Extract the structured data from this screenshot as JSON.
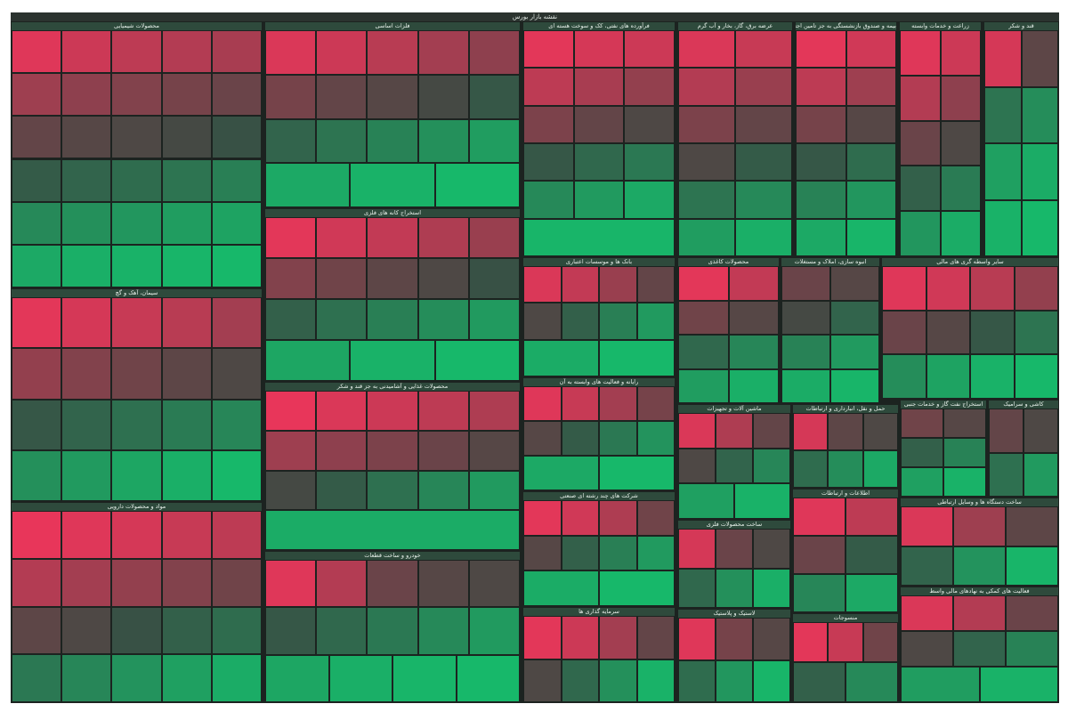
{
  "chart_data": {
    "type": "treemap",
    "title": "نقشه بازار بورس",
    "negative_color": "#e8365a",
    "neutral_color": "#3a4a42",
    "positive_color": "#17b86a",
    "color_range": 3,
    "sectors": [
      {
        "name": "محصولات شیمیایی",
        "values": [
          -2.8,
          -2.4,
          -2.1,
          -1.9,
          -1.7,
          -1.5,
          -1.2,
          -1.0,
          -0.8,
          -0.6,
          -0.5,
          -0.3,
          -0.2,
          -0.1,
          0.1,
          0.3,
          0.5,
          0.7,
          0.9,
          1.2,
          1.5,
          1.7,
          1.9,
          2.1,
          2.3,
          2.5,
          2.7,
          2.8,
          2.9,
          3.0
        ]
      },
      {
        "name": "سیمان، آهک و گچ",
        "values": [
          -2.9,
          -2.6,
          -2.3,
          -2.0,
          -1.6,
          -1.3,
          -1.0,
          -0.7,
          -0.4,
          -0.2,
          0.2,
          0.5,
          0.8,
          1.1,
          1.4,
          1.7,
          2.0,
          2.4,
          2.7,
          3.0
        ]
      },
      {
        "name": "مواد و محصولات دارویی",
        "values": [
          -3.0,
          -2.8,
          -2.6,
          -2.3,
          -2.1,
          -1.9,
          -1.6,
          -1.3,
          -1.0,
          -0.7,
          -0.4,
          -0.2,
          0.1,
          0.4,
          0.7,
          1.0,
          1.4,
          1.8,
          2.2,
          2.6
        ]
      },
      {
        "name": "فلزات اساسی",
        "values": [
          -2.7,
          -2.4,
          -2.0,
          -1.6,
          -1.2,
          -0.8,
          -0.5,
          -0.3,
          -0.1,
          0.2,
          0.5,
          0.9,
          1.3,
          1.7,
          2.1,
          2.5,
          2.8,
          3.0
        ]
      },
      {
        "name": "استخراج کانه های فلزی",
        "values": [
          -2.9,
          -2.5,
          -2.2,
          -1.8,
          -1.4,
          -1.0,
          -0.7,
          -0.4,
          -0.2,
          0.1,
          0.4,
          0.8,
          1.2,
          1.6,
          2.0,
          2.4,
          2.8,
          3.0
        ]
      },
      {
        "name": "محصولات غذایی و آشامیدنی به جز قند و شکر",
        "values": [
          -3.0,
          -2.7,
          -2.4,
          -2.1,
          -1.8,
          -1.5,
          -1.2,
          -0.9,
          -0.6,
          -0.3,
          -0.1,
          0.3,
          0.8,
          1.4,
          2.0,
          2.6
        ]
      },
      {
        "name": "خودرو و ساخت قطعات",
        "values": [
          -2.8,
          -1.9,
          -0.6,
          -0.3,
          -0.2,
          0.2,
          0.6,
          1.0,
          1.5,
          2.0,
          2.4,
          2.7,
          2.9,
          3.0
        ]
      },
      {
        "name": "فرآورده های نفتی، کک و سوخت هسته ای",
        "values": [
          -2.9,
          -2.6,
          -2.4,
          -2.1,
          -1.7,
          -1.3,
          -0.9,
          -0.5,
          -0.2,
          0.2,
          0.6,
          1.0,
          1.5,
          2.0,
          2.5,
          2.9
        ]
      },
      {
        "name": "عرضه برق، گاز، بخار و آب گرم",
        "values": [
          -2.7,
          -2.3,
          -1.9,
          -1.4,
          -0.9,
          -0.5,
          -0.2,
          0.3,
          0.9,
          1.5,
          2.1,
          2.7
        ]
      },
      {
        "name": "بیمه و صندوق بازنشستگی به جز تامین اجتماعی",
        "values": [
          -2.9,
          -2.5,
          -2.1,
          -1.5,
          -0.8,
          -0.3,
          0.2,
          0.7,
          1.3,
          1.9,
          2.5,
          2.9
        ]
      },
      {
        "name": "زراعت و خدمات وابسته",
        "values": [
          -2.8,
          -2.4,
          -1.9,
          -1.2,
          -0.6,
          -0.2,
          0.4,
          1.1,
          1.9,
          2.6
        ]
      },
      {
        "name": "قند و شکر",
        "values": [
          -2.6,
          -0.4,
          0.9,
          1.6,
          2.2,
          2.6,
          2.8,
          3.0
        ]
      },
      {
        "name": "بانک ها و موسسات اعتباری",
        "values": [
          -2.7,
          -2.2,
          -1.4,
          -0.5,
          -0.2,
          0.4,
          1.2,
          2.0,
          2.6,
          3.0
        ]
      },
      {
        "name": "محصولات کاغذی",
        "values": [
          -2.9,
          -2.2,
          -0.7,
          -0.3,
          0.6,
          1.4,
          2.1,
          2.7
        ]
      },
      {
        "name": "انبوه سازی، املاک و مستغلات",
        "values": [
          -0.6,
          -0.3,
          -0.1,
          0.5,
          1.3,
          2.0,
          2.6,
          2.9
        ]
      },
      {
        "name": "سایر واسطه گری های مالی",
        "values": [
          -2.8,
          -2.5,
          -2.0,
          -1.3,
          -0.6,
          -0.3,
          0.2,
          0.9,
          1.6,
          2.3,
          2.8,
          3.0
        ]
      },
      {
        "name": "رایانه و فعالیت های وابسته به آن",
        "values": [
          -2.8,
          -2.3,
          -1.6,
          -0.8,
          -0.3,
          0.3,
          1.0,
          1.8,
          2.5,
          3.0
        ]
      },
      {
        "name": "ماشین آلات و تجهیزات",
        "values": [
          -2.7,
          -1.8,
          -0.5,
          -0.2,
          0.5,
          1.4,
          2.2,
          2.8
        ]
      },
      {
        "name": "حمل و نقل، انبارداری و ارتباطات",
        "values": [
          -2.6,
          -0.4,
          -0.2,
          0.7,
          1.6,
          2.5
        ]
      },
      {
        "name": "استخراج نفت گاز و خدمات جنبی",
        "values": [
          -0.7,
          -0.3,
          0.4,
          1.3,
          2.2,
          2.8
        ]
      },
      {
        "name": "کاشی و سرامیک",
        "values": [
          -0.5,
          -0.2,
          0.8,
          2.0
        ]
      },
      {
        "name": "شرکت های چند رشته ای صنعتی",
        "values": [
          -2.9,
          -2.5,
          -1.8,
          -0.7,
          -0.3,
          0.4,
          1.2,
          2.0,
          2.6,
          3.0
        ]
      },
      {
        "name": "ساخت محصولات فلزی",
        "values": [
          -2.6,
          -0.6,
          -0.2,
          0.6,
          1.7,
          2.7
        ]
      },
      {
        "name": "اطلاعات و ارتباطات",
        "values": [
          -2.8,
          -2.1,
          -0.6,
          0.3,
          1.4,
          2.5
        ]
      },
      {
        "name": "ساخت دستگاه ها و وسایل ارتباطی",
        "values": [
          -2.7,
          -1.5,
          -0.4,
          0.5,
          1.8,
          2.9
        ]
      },
      {
        "name": "سرمایه گذاری ها",
        "values": [
          -2.9,
          -2.4,
          -1.6,
          -0.5,
          -0.2,
          0.6,
          1.7,
          2.8
        ]
      },
      {
        "name": "لاستیک و پلاستیک",
        "values": [
          -2.8,
          -0.8,
          -0.3,
          0.7,
          1.9,
          2.9
        ]
      },
      {
        "name": "منسوجات",
        "values": [
          -2.9,
          -2.3,
          -0.7,
          0.4,
          1.5
        ]
      },
      {
        "name": "فعالیت های کمکی به نهادهای مالی واسط",
        "values": [
          -2.7,
          -1.9,
          -0.6,
          -0.2,
          0.5,
          1.3,
          2.1,
          2.8
        ]
      }
    ]
  }
}
